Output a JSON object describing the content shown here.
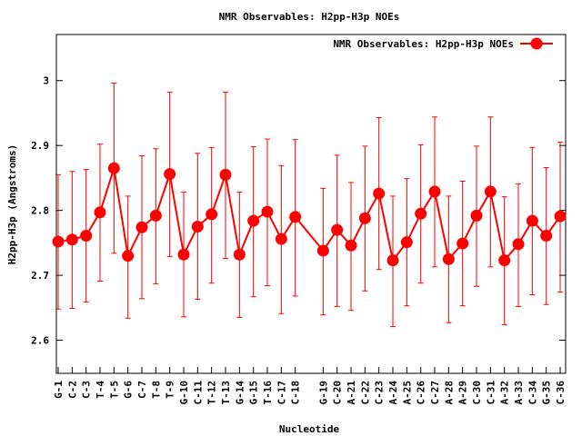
{
  "chart_data": {
    "type": "line",
    "title": "NMR Observables: H2pp-H3p NOEs",
    "xlabel": "Nucleotide",
    "ylabel": "H2pp-H3p (Angstroms)",
    "ylim": [
      2.549,
      3.071
    ],
    "xlim": [
      0.87,
      37.39
    ],
    "yticks": [
      "2.6",
      "2.7",
      "2.8",
      "2.9",
      "3"
    ],
    "ytick_values": [
      2.6,
      2.7,
      2.8,
      2.9,
      3.0
    ],
    "grid": false,
    "legend": {
      "placement": "top-right",
      "entries": [
        "NMR Observables: H2pp-H3p NOEs"
      ]
    },
    "color": "#ff0000",
    "series": [
      {
        "name": "NMR Observables: H2pp-H3p NOEs",
        "points": [
          {
            "label": "G-1",
            "x": 1,
            "y": 2.752,
            "ylow": 2.648,
            "yhigh": 2.855
          },
          {
            "label": "C-2",
            "x": 2,
            "y": 2.755,
            "ylow": 2.649,
            "yhigh": 2.86
          },
          {
            "label": "C-3",
            "x": 3,
            "y": 2.761,
            "ylow": 2.659,
            "yhigh": 2.863
          },
          {
            "label": "T-4",
            "x": 4,
            "y": 2.797,
            "ylow": 2.691,
            "yhigh": 2.902
          },
          {
            "label": "T-5",
            "x": 5,
            "y": 2.865,
            "ylow": 2.734,
            "yhigh": 2.996
          },
          {
            "label": "G-6",
            "x": 6,
            "y": 2.73,
            "ylow": 2.634,
            "yhigh": 2.822
          },
          {
            "label": "C-7",
            "x": 7,
            "y": 2.774,
            "ylow": 2.664,
            "yhigh": 2.884
          },
          {
            "label": "T-8",
            "x": 8,
            "y": 2.792,
            "ylow": 2.687,
            "yhigh": 2.895
          },
          {
            "label": "T-9",
            "x": 9,
            "y": 2.856,
            "ylow": 2.729,
            "yhigh": 2.982
          },
          {
            "label": "G-10",
            "x": 10,
            "y": 2.732,
            "ylow": 2.636,
            "yhigh": 2.828
          },
          {
            "label": "C-11",
            "x": 11,
            "y": 2.775,
            "ylow": 2.663,
            "yhigh": 2.888
          },
          {
            "label": "T-12",
            "x": 12,
            "y": 2.794,
            "ylow": 2.688,
            "yhigh": 2.897
          },
          {
            "label": "T-13",
            "x": 13,
            "y": 2.855,
            "ylow": 2.726,
            "yhigh": 2.982
          },
          {
            "label": "G-14",
            "x": 14,
            "y": 2.732,
            "ylow": 2.635,
            "yhigh": 2.828
          },
          {
            "label": "G-15",
            "x": 15,
            "y": 2.784,
            "ylow": 2.667,
            "yhigh": 2.898
          },
          {
            "label": "T-16",
            "x": 16,
            "y": 2.798,
            "ylow": 2.684,
            "yhigh": 2.91
          },
          {
            "label": "C-17",
            "x": 17,
            "y": 2.756,
            "ylow": 2.641,
            "yhigh": 2.869
          },
          {
            "label": "C-18",
            "x": 18,
            "y": 2.79,
            "ylow": 2.668,
            "yhigh": 2.909
          },
          {
            "label": "G-19",
            "x": 20,
            "y": 2.738,
            "ylow": 2.639,
            "yhigh": 2.834
          },
          {
            "label": "C-20",
            "x": 21,
            "y": 2.77,
            "ylow": 2.652,
            "yhigh": 2.885
          },
          {
            "label": "A-21",
            "x": 22,
            "y": 2.746,
            "ylow": 2.646,
            "yhigh": 2.843
          },
          {
            "label": "C-22",
            "x": 23,
            "y": 2.788,
            "ylow": 2.676,
            "yhigh": 2.899
          },
          {
            "label": "C-23",
            "x": 24,
            "y": 2.826,
            "ylow": 2.709,
            "yhigh": 2.943
          },
          {
            "label": "A-24",
            "x": 25,
            "y": 2.723,
            "ylow": 2.621,
            "yhigh": 2.822
          },
          {
            "label": "A-25",
            "x": 26,
            "y": 2.751,
            "ylow": 2.653,
            "yhigh": 2.849
          },
          {
            "label": "C-26",
            "x": 27,
            "y": 2.795,
            "ylow": 2.688,
            "yhigh": 2.901
          },
          {
            "label": "C-27",
            "x": 28,
            "y": 2.829,
            "ylow": 2.713,
            "yhigh": 2.944
          },
          {
            "label": "A-28",
            "x": 29,
            "y": 2.725,
            "ylow": 2.627,
            "yhigh": 2.822
          },
          {
            "label": "A-29",
            "x": 30,
            "y": 2.749,
            "ylow": 2.653,
            "yhigh": 2.845
          },
          {
            "label": "C-30",
            "x": 31,
            "y": 2.792,
            "ylow": 2.683,
            "yhigh": 2.899
          },
          {
            "label": "C-31",
            "x": 32,
            "y": 2.829,
            "ylow": 2.713,
            "yhigh": 2.944
          },
          {
            "label": "A-32",
            "x": 33,
            "y": 2.723,
            "ylow": 2.624,
            "yhigh": 2.821
          },
          {
            "label": "A-33",
            "x": 34,
            "y": 2.748,
            "ylow": 2.652,
            "yhigh": 2.841
          },
          {
            "label": "C-34",
            "x": 35,
            "y": 2.784,
            "ylow": 2.67,
            "yhigh": 2.897
          },
          {
            "label": "G-35",
            "x": 36,
            "y": 2.761,
            "ylow": 2.655,
            "yhigh": 2.866
          },
          {
            "label": "C-36",
            "x": 37,
            "y": 2.791,
            "ylow": 2.674,
            "yhigh": 2.905
          }
        ]
      }
    ]
  }
}
